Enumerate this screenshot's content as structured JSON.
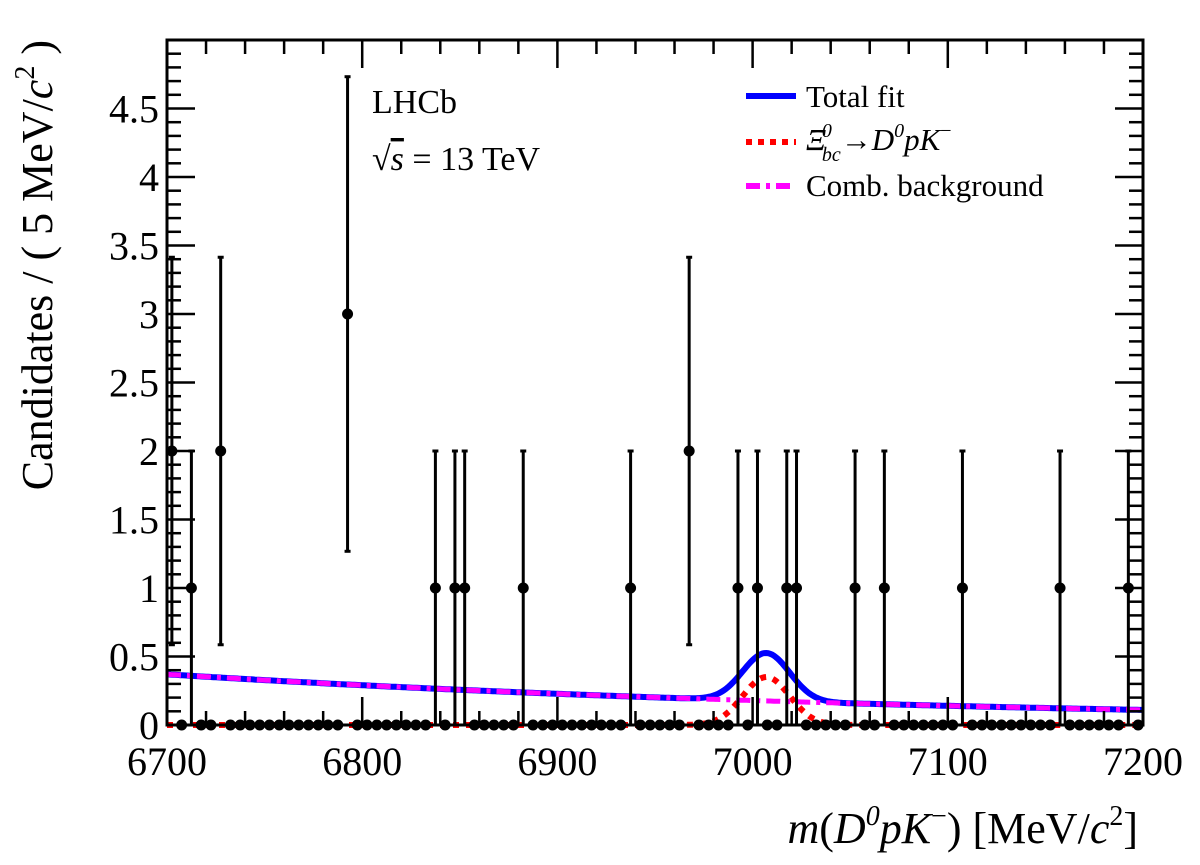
{
  "chart_data": {
    "type": "scatter",
    "title": "",
    "xlabel": "m(D0pK−) [MeV/c2]",
    "xlabel_parts": {
      "m": "m",
      "open": "(",
      "D": "D",
      "zero": "0",
      "p": "p",
      "K": "K",
      "minus": "−",
      "close": ")",
      "units": " [MeV/",
      "c": "c",
      "sq": "2",
      "end": "]"
    },
    "ylabel": "Candidates / ( 5 MeV/c2 )",
    "ylabel_parts": {
      "main": "Candidates / ( 5 MeV/",
      "c": "c",
      "sq": "2",
      "end": " )"
    },
    "xlim": [
      6700,
      7200
    ],
    "ylim": [
      0,
      5.0
    ],
    "bin_width": 5,
    "x_ticks": [
      6700,
      6800,
      6900,
      7000,
      7100,
      7200
    ],
    "y_ticks": [
      0,
      0.5,
      1,
      1.5,
      2,
      2.5,
      3,
      3.5,
      4,
      4.5
    ],
    "y_tick_labels": [
      "0",
      "0.5",
      "1",
      "1.5",
      "2",
      "2.5",
      "3",
      "3.5",
      "4",
      "4.5"
    ],
    "x_tick_labels": [
      "6700",
      "6800",
      "6900",
      "7000",
      "7100",
      "7200"
    ],
    "data_points": [
      {
        "x": 6702.5,
        "y": 2
      },
      {
        "x": 6712.5,
        "y": 1
      },
      {
        "x": 6727.5,
        "y": 2
      },
      {
        "x": 6792.5,
        "y": 3
      },
      {
        "x": 6837.5,
        "y": 1
      },
      {
        "x": 6847.5,
        "y": 1
      },
      {
        "x": 6852.5,
        "y": 1
      },
      {
        "x": 6882.5,
        "y": 1
      },
      {
        "x": 6937.5,
        "y": 1
      },
      {
        "x": 6967.5,
        "y": 2
      },
      {
        "x": 6992.5,
        "y": 1
      },
      {
        "x": 7002.5,
        "y": 1
      },
      {
        "x": 7017.5,
        "y": 1
      },
      {
        "x": 7022.5,
        "y": 1
      },
      {
        "x": 7052.5,
        "y": 1
      },
      {
        "x": 7067.5,
        "y": 1
      },
      {
        "x": 7107.5,
        "y": 1
      },
      {
        "x": 7157.5,
        "y": 1
      },
      {
        "x": 7192.5,
        "y": 1
      }
    ],
    "series": [
      {
        "name": "Total fit",
        "color": "#0000ff",
        "style": "solid"
      },
      {
        "name": "Ξbc0→D0pK−",
        "color": "#ff0000",
        "style": "dotted",
        "peak_mass": 7007,
        "peak_height": 0.35,
        "sigma": 12
      },
      {
        "name": "Comb. background",
        "color": "#ff00ff",
        "style": "dash-dot",
        "value_at_6700": 0.37,
        "value_at_7200": 0.11
      }
    ],
    "legend": {
      "placement": "top-right",
      "total": "Total fit",
      "signal": {
        "xi": "Ξ",
        "sup": "0",
        "sub": "bc",
        "arrow": "→",
        "D": "D",
        "dsup": "0",
        "pK": "pK",
        "minus": "−"
      },
      "bkg": "Comb. background"
    },
    "annotations": {
      "experiment": "LHCb",
      "sqrt": "√",
      "s": "s",
      "energy": " = 13 TeV"
    },
    "grid": false
  }
}
